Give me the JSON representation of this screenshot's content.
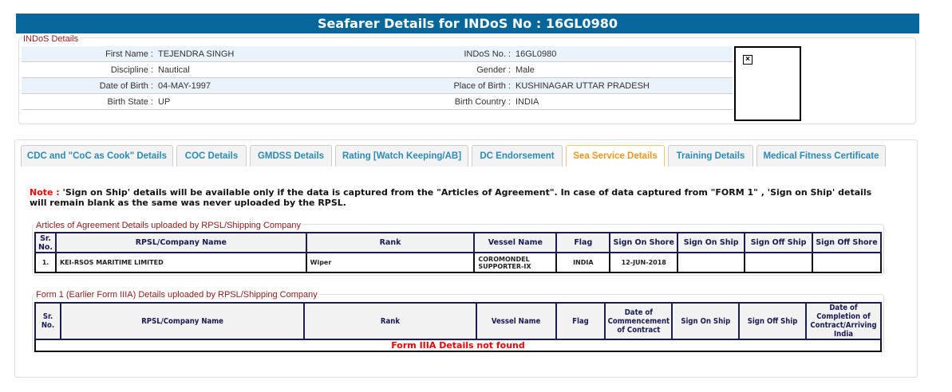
{
  "title": "Seafarer Details for INDoS No : 16GL0980",
  "indos": {
    "legend": "INDoS Details",
    "rows": [
      {
        "l1": "First Name :",
        "v1": "TEJENDRA SINGH",
        "l2": "INDoS No. :",
        "v2": "16GL0980"
      },
      {
        "l1": "Discipline :",
        "v1": "Nautical",
        "l2": "Gender :",
        "v2": "Male"
      },
      {
        "l1": "Date of Birth :",
        "v1": "04-MAY-1997",
        "l2": "Place of Birth :",
        "v2": "KUSHINAGAR UTTAR PRADESH"
      },
      {
        "l1": "Birth State :",
        "v1": "UP",
        "l2": "Birth Country :",
        "v2": "INDIA"
      }
    ]
  },
  "tabs": [
    "CDC and \"CoC as Cook\" Details",
    "COC Details",
    "GMDSS Details",
    "Rating [Watch Keeping/AB]",
    "DC Endorsement",
    "Sea Service Details",
    "Training Details",
    "Medical Fitness Certificate"
  ],
  "active_tab": "Sea Service Details",
  "note": {
    "label": "Note :",
    "text": " 'Sign on Ship' details will be available only if the data is captured from the \"Articles of Agreement\". In case of data captured from \"FORM 1\" , 'Sign on Ship' details will remain blank as the same was never uploaded by the RPSL."
  },
  "articles": {
    "legend": "Articles of Agreement Details uploaded by RPSL/Shipping Company",
    "headers": [
      "Sr. No.",
      "RPSL/Company Name",
      "Rank",
      "Vessel Name",
      "Flag",
      "Sign On Shore",
      "Sign On Ship",
      "Sign Off Ship",
      "Sign Off Shore"
    ],
    "rows": [
      [
        "1.",
        "KEI-RSOS MARITIME LIMITED",
        "Wiper",
        "COROMONDEL SUPPORTER-IX",
        "INDIA",
        "12-JUN-2018",
        "",
        "",
        ""
      ]
    ]
  },
  "form1": {
    "legend": "Form 1 (Earlier Form IIIA) Details uploaded by RPSL/Shipping Company",
    "headers": [
      "Sr. No.",
      "RPSL/Company Name",
      "Rank",
      "Vessel Name",
      "Flag",
      "Date of Commencement of Contract",
      "Sign On Ship",
      "Sign Off Ship",
      "Date of Completion of Contract/Arriving India"
    ],
    "empty_message": "Form IIIA Details not found"
  }
}
